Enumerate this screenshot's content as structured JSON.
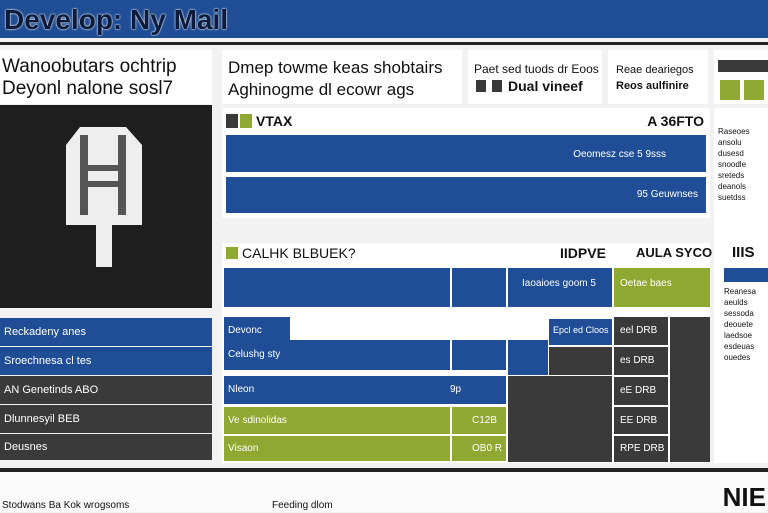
{
  "header": {
    "title": "Develop: Ny Mail"
  },
  "info_cards": [
    {
      "line1": "Wanoobutars ochtrip",
      "line2": "Deyonl nalone sosl7"
    },
    {
      "line1": "Dmep towme keas shobtairs",
      "line2": "Aghinogme dl ecowr ags"
    },
    {
      "line1": "Paet sed tuods dr Eoos",
      "line2": "Dual vineef"
    },
    {
      "line1": "Reae deariegos",
      "line2": "Reos aulfinire"
    }
  ],
  "side_list": [
    "Reckadeny anes",
    "Sroechnesa cl tes",
    "AN Genetinds ABO",
    "Dlunnesyil BEB",
    "Deusnes"
  ],
  "summary": {
    "label": "VTAX",
    "value": "A 36FTO",
    "bars": [
      "Oeomesz cse 5 9sss",
      "95 Geuwnses"
    ]
  },
  "table": {
    "title": "CALHK BLBUEK?",
    "col1": "IIDPVE",
    "col2": "AULA SYCO",
    "rows": [
      "Devonc",
      "Celushg sty",
      "Nleon",
      "Ve sdinolidas",
      "Visaon"
    ],
    "mid": [
      "Iaoaioes goom 5",
      "Epcl ed Cloos"
    ],
    "vals": [
      "9p",
      "C12B",
      "OB0 R"
    ],
    "right": [
      "Oetae baes",
      "eel DRB",
      "es DRB",
      "eE DRB",
      "EE DRB",
      "RPE DRB"
    ]
  },
  "right_panel": {
    "text1": "Raseoes ansolu dusesd snoodle sreteds deanols suetdss",
    "title": "IIIS",
    "text2": "Reanesa aeulds sessoda deouete laedsoe esdeuas ouedes"
  },
  "footer": {
    "left": "Stodwans Ba Kok wrogsoms",
    "center": "Feeding dlom",
    "right": "NIE"
  }
}
